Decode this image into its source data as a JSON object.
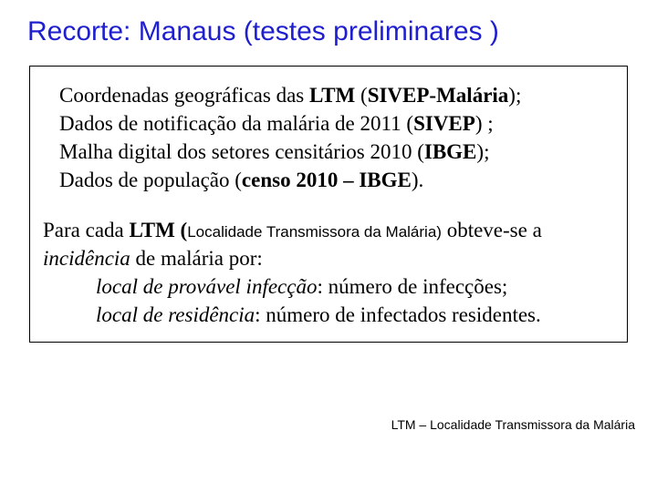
{
  "title": "Recorte: Manaus (testes preliminares )",
  "box": {
    "row1": {
      "pre": "Coordenadas geográficas das ",
      "ltm": "LTM",
      "mid": " (",
      "strong": "SIVEP-Malária",
      "post": ");"
    },
    "row2": {
      "pre": "Dados de notificação da malária de 2011 (",
      "strong": "SIVEP",
      "post": ") ;"
    },
    "row3": {
      "pre": "Malha digital dos setores censitários 2010 (",
      "strong": "IBGE",
      "post": ");"
    },
    "row4": {
      "pre": "Dados de população (",
      "strong": "censo 2010 – IBGE",
      "post": ")."
    },
    "para2": {
      "pre": "Para cada ",
      "ltm": "LTM (",
      "small": "Localidade Transmissora da Malária)",
      "mid": " obteve-se a ",
      "inc": "incidência",
      "post": " de malária por:"
    },
    "sub1": {
      "em": "local de provável infecção",
      "rest": ": número de infecções;"
    },
    "sub2": {
      "em": "local de residência",
      "rest": ": número de infectados residentes."
    }
  },
  "footnote": "LTM – Localidade Transmissora da Malária"
}
